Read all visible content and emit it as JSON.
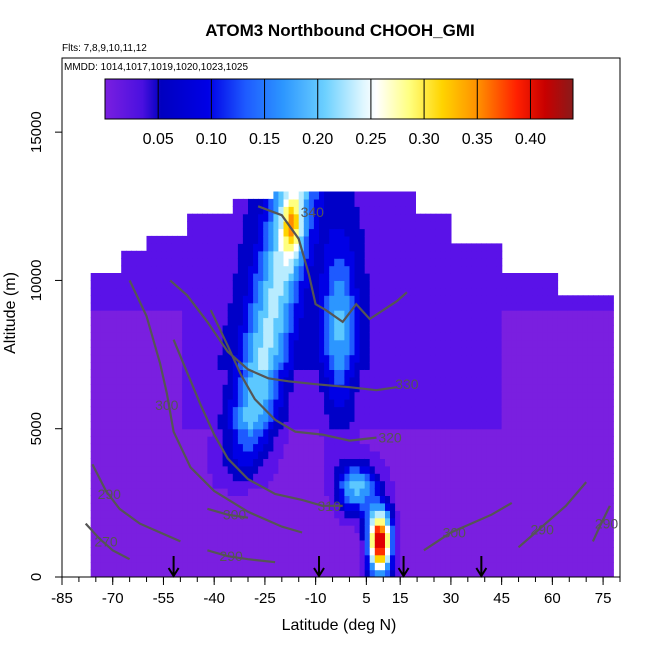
{
  "chart_data": {
    "type": "heatmap",
    "title": "ATOM3 Northbound CHOOH_GMI",
    "subtitle_flights": "Flts: 7,8,9,10,11,12",
    "subtitle_dates": "MMDD: 1014,1017,1019,1020,1023,1025",
    "xlabel": "Latitude (deg N)",
    "ylabel": "Altitude (m)",
    "xlim": [
      -85,
      80
    ],
    "ylim": [
      0,
      17500
    ],
    "x_ticks": [
      -85,
      -70,
      -55,
      -40,
      -25,
      -10,
      5,
      15,
      30,
      45,
      60,
      75
    ],
    "x_tick_labels": [
      "-85",
      "-70",
      "-55",
      "-40",
      "-25",
      "-10",
      "5",
      "15",
      "30",
      "45",
      "60",
      "75"
    ],
    "y_ticks": [
      0,
      5000,
      10000,
      15000
    ],
    "y_tick_labels": [
      "0",
      "5000",
      "10000",
      "15000"
    ],
    "colorbar": {
      "range": [
        0.0,
        0.44
      ],
      "ticks": [
        0.05,
        0.1,
        0.15,
        0.2,
        0.25,
        0.3,
        0.35,
        0.4
      ],
      "tick_labels": [
        "0.05",
        "0.10",
        "0.15",
        "0.20",
        "0.25",
        "0.30",
        "0.35",
        "0.40"
      ],
      "colors": [
        "#7a1fe0",
        "#5a12e8",
        "#0000c8",
        "#0000e6",
        "#1e5aff",
        "#2c96ff",
        "#5cc8ff",
        "#b8ecff",
        "#ffffff",
        "#ffff80",
        "#ffd400",
        "#ff8c00",
        "#ff3000",
        "#e00000",
        "#b00000",
        "#8a1a1a"
      ]
    },
    "flight_arrows_lat": [
      -52,
      -9,
      16,
      39
    ],
    "contours": [
      {
        "label": "340",
        "label_lat": -11,
        "label_alt": 12300,
        "points": [
          [
            -27,
            12500
          ],
          [
            -20,
            12200
          ],
          [
            -15,
            11400
          ],
          [
            -12,
            10200
          ],
          [
            -10,
            9200
          ],
          [
            -7,
            9000
          ],
          [
            -2,
            8600
          ],
          [
            2,
            9200
          ],
          [
            6,
            8700
          ],
          [
            10,
            9000
          ],
          [
            14,
            9300
          ],
          [
            17,
            9600
          ]
        ]
      },
      {
        "label": "330",
        "label_lat": 17,
        "label_alt": 6500,
        "points": [
          [
            -53,
            10000
          ],
          [
            -48,
            9500
          ],
          [
            -42,
            8600
          ],
          [
            -36,
            7600
          ],
          [
            -30,
            7000
          ],
          [
            -24,
            6700
          ],
          [
            -18,
            6600
          ],
          [
            -10,
            6500
          ],
          [
            0,
            6400
          ],
          [
            8,
            6300
          ],
          [
            14,
            6400
          ]
        ]
      },
      {
        "label": "320",
        "label_lat": 12,
        "label_alt": 4700,
        "points": [
          [
            -41,
            9000
          ],
          [
            -36,
            7800
          ],
          [
            -32,
            6800
          ],
          [
            -28,
            6000
          ],
          [
            -22,
            5300
          ],
          [
            -16,
            4900
          ],
          [
            -8,
            4800
          ],
          [
            0,
            4600
          ],
          [
            8,
            4700
          ]
        ]
      },
      {
        "label": "310",
        "label_lat": -6,
        "label_alt": 2400,
        "points": [
          [
            -52,
            8000
          ],
          [
            -48,
            6900
          ],
          [
            -44,
            5800
          ],
          [
            -40,
            4800
          ],
          [
            -36,
            4000
          ],
          [
            -30,
            3300
          ],
          [
            -22,
            2800
          ],
          [
            -14,
            2600
          ],
          [
            -8,
            2400
          ],
          [
            -2,
            2400
          ]
        ]
      },
      {
        "label": "300",
        "label_lat": -54,
        "label_alt": 5800,
        "points": [
          [
            -65,
            10000
          ],
          [
            -60,
            8800
          ],
          [
            -56,
            7200
          ],
          [
            -54,
            6200
          ],
          [
            -52,
            4900
          ],
          [
            -47,
            3700
          ],
          [
            -40,
            2900
          ],
          [
            -30,
            2200
          ],
          [
            -20,
            1700
          ],
          [
            -14,
            1500
          ]
        ]
      },
      {
        "label": "300",
        "label_lat": -34,
        "label_alt": 2100,
        "points": [
          [
            -42,
            2300
          ],
          [
            -36,
            2100
          ],
          [
            -30,
            2000
          ]
        ]
      },
      {
        "label": "300",
        "label_lat": 31,
        "label_alt": 1500,
        "points": [
          [
            22,
            900
          ],
          [
            26,
            1200
          ],
          [
            30,
            1500
          ],
          [
            36,
            1800
          ],
          [
            42,
            2100
          ],
          [
            48,
            2500
          ]
        ]
      },
      {
        "label": "290",
        "label_lat": -71,
        "label_alt": 2800,
        "points": [
          [
            -76,
            3800
          ],
          [
            -72,
            2900
          ],
          [
            -68,
            2300
          ],
          [
            -62,
            1800
          ],
          [
            -56,
            1500
          ],
          [
            -50,
            1200
          ]
        ]
      },
      {
        "label": "290",
        "label_lat": -35,
        "label_alt": 700,
        "points": [
          [
            -42,
            900
          ],
          [
            -36,
            700
          ],
          [
            -30,
            600
          ],
          [
            -22,
            500
          ]
        ]
      },
      {
        "label": "290",
        "label_lat": 57,
        "label_alt": 1600,
        "points": [
          [
            50,
            1000
          ],
          [
            54,
            1400
          ],
          [
            58,
            1800
          ],
          [
            64,
            2400
          ],
          [
            70,
            3200
          ]
        ]
      },
      {
        "label": "270",
        "label_lat": -72,
        "label_alt": 1200,
        "points": [
          [
            -78,
            1800
          ],
          [
            -74,
            1300
          ],
          [
            -70,
            900
          ],
          [
            -65,
            600
          ]
        ]
      },
      {
        "label": "290",
        "label_lat": 76,
        "label_alt": 1800,
        "points": [
          [
            72,
            1200
          ],
          [
            74,
            1700
          ],
          [
            77,
            2400
          ]
        ]
      }
    ]
  }
}
